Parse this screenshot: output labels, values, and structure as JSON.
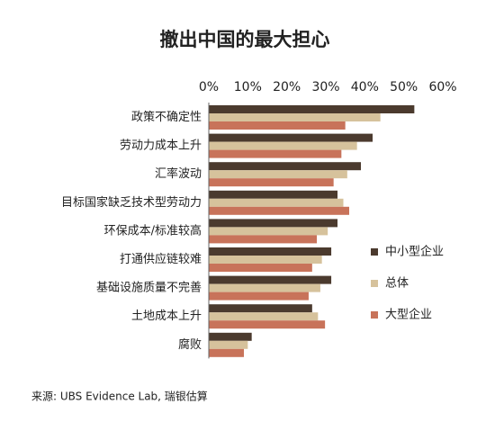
{
  "chart_data": {
    "type": "bar",
    "orientation": "horizontal",
    "title": "撤出中国的最大担心",
    "categories": [
      "政策不确定性",
      "劳动力成本上升",
      "汇率波动",
      "目标国家缺乏技术型劳动力",
      "环保成本/标准较高",
      "打通供应链较难",
      "基础设施质量不完善",
      "土地成本上升",
      "腐败"
    ],
    "series": [
      {
        "name": "中小型企业",
        "color": "#4b3a2e",
        "values": [
          52.7,
          42,
          39,
          33,
          33,
          31.4,
          31.4,
          26.5,
          11
        ]
      },
      {
        "name": "总体",
        "color": "#d6c29c",
        "values": [
          44,
          38,
          35.5,
          34.5,
          30.5,
          29,
          28.6,
          28,
          10
        ]
      },
      {
        "name": "大型企业",
        "color": "#c8735a",
        "values": [
          35,
          34,
          32,
          36,
          27.7,
          26.5,
          25.6,
          29.8,
          9
        ]
      }
    ],
    "xlim": [
      0,
      60
    ],
    "xticks": [
      {
        "value": 0,
        "label": "0%"
      },
      {
        "value": 10,
        "label": "10%"
      },
      {
        "value": 20,
        "label": "20%"
      },
      {
        "value": 30,
        "label": "30%"
      },
      {
        "value": 40,
        "label": "40%"
      },
      {
        "value": 50,
        "label": "50%"
      },
      {
        "value": 60,
        "label": "60%"
      }
    ],
    "legend": "right",
    "source": "来源: UBS Evidence Lab, 瑞银估算"
  }
}
